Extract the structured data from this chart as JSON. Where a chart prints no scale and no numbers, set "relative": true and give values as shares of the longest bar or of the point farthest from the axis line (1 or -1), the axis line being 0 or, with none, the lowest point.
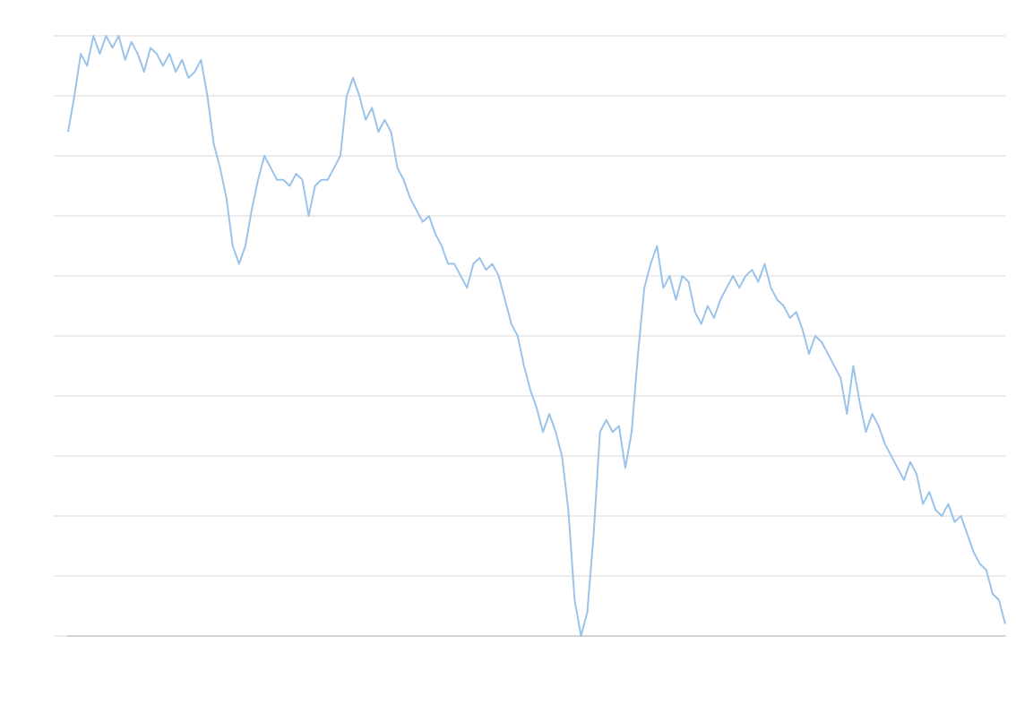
{
  "chart_data": {
    "type": "line",
    "relative": true,
    "grid": "y",
    "marker": "none",
    "line_style": "solid",
    "color": "#9cc3ea",
    "categories": [
      null,
      null,
      null,
      null,
      null,
      null,
      null,
      null,
      null,
      null,
      null,
      null,
      null,
      null,
      null,
      null,
      null,
      null,
      null,
      null,
      null,
      null,
      null,
      null,
      null,
      null,
      null,
      null,
      null,
      null,
      null,
      null,
      null,
      null,
      null,
      null,
      null,
      null,
      null,
      null,
      null,
      null,
      null,
      null,
      null,
      null,
      null,
      null,
      null,
      null,
      null,
      null,
      null,
      null,
      null,
      null,
      null,
      null,
      null,
      null,
      null,
      null,
      null,
      null,
      null,
      null,
      null,
      null,
      null,
      null,
      null,
      null,
      null,
      null,
      null,
      null,
      null,
      null,
      null,
      null,
      null,
      null,
      null,
      null,
      null,
      null,
      null,
      null,
      null,
      null,
      null,
      null,
      null,
      null,
      null,
      null,
      null,
      null,
      null,
      null,
      null,
      null,
      null,
      null,
      null,
      null,
      null,
      null,
      null,
      null,
      null,
      null,
      null,
      null,
      null,
      null,
      null,
      null,
      null,
      null,
      null,
      null,
      null,
      null,
      null,
      null,
      null,
      null,
      null,
      null,
      null,
      null,
      null,
      null,
      null,
      null,
      null,
      null,
      null,
      null,
      null,
      null,
      null,
      null,
      null,
      null,
      null,
      null,
      null
    ],
    "values": [
      0.84,
      0.9,
      0.97,
      0.95,
      1.0,
      0.97,
      1.0,
      0.98,
      1.0,
      0.96,
      0.99,
      0.97,
      0.94,
      0.98,
      0.97,
      0.95,
      0.97,
      0.94,
      0.96,
      0.93,
      0.94,
      0.96,
      0.9,
      0.82,
      0.78,
      0.73,
      0.65,
      0.62,
      0.65,
      0.71,
      0.76,
      0.8,
      0.78,
      0.76,
      0.76,
      0.75,
      0.77,
      0.76,
      0.7,
      0.75,
      0.76,
      0.76,
      0.78,
      0.8,
      0.9,
      0.93,
      0.9,
      0.86,
      0.88,
      0.84,
      0.86,
      0.84,
      0.78,
      0.76,
      0.73,
      0.71,
      0.69,
      0.7,
      0.67,
      0.65,
      0.62,
      0.62,
      0.6,
      0.58,
      0.62,
      0.63,
      0.61,
      0.62,
      0.6,
      0.56,
      0.52,
      0.5,
      0.45,
      0.41,
      0.38,
      0.34,
      0.37,
      0.34,
      0.3,
      0.21,
      0.06,
      0,
      0.04,
      0.17,
      0.34,
      0.36,
      0.34,
      0.35,
      0.28,
      0.34,
      0.47,
      0.58,
      0.62,
      0.65,
      0.58,
      0.6,
      0.56,
      0.6,
      0.59,
      0.54,
      0.52,
      0.55,
      0.53,
      0.56,
      0.58,
      0.6,
      0.58,
      0.6,
      0.61,
      0.59,
      0.62,
      0.58,
      0.56,
      0.55,
      0.53,
      0.54,
      0.51,
      0.47,
      0.5,
      0.49,
      0.47,
      0.45,
      0.43,
      0.37,
      0.45,
      0.39,
      0.34,
      0.37,
      0.35,
      0.32,
      0.3,
      0.28,
      0.26,
      0.29,
      0.27,
      0.22,
      0.24,
      0.21,
      0.2,
      0.22,
      0.19,
      0.2,
      0.17,
      0.14,
      0.12,
      0.11,
      0.07,
      0.06,
      0.02
    ]
  }
}
